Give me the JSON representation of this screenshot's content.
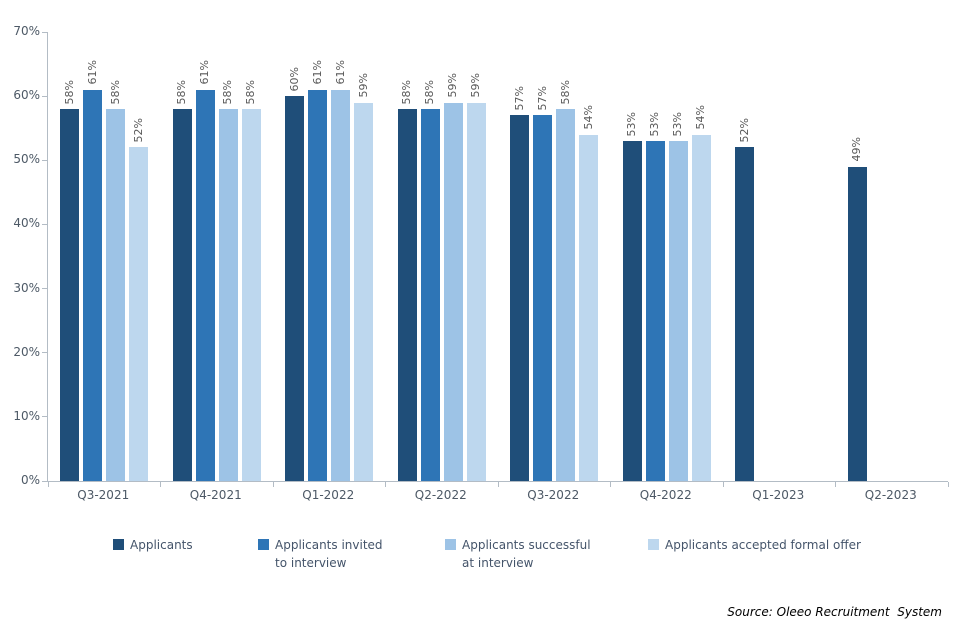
{
  "chart_data": {
    "type": "bar",
    "title": "",
    "categories": [
      "Q3-2021",
      "Q4-2021",
      "Q1-2022",
      "Q2-2022",
      "Q3-2022",
      "Q4-2022",
      "Q1-2023",
      "Q2-2023"
    ],
    "series": [
      {
        "name": "Applicants",
        "legend_lines": [
          "Applicants"
        ],
        "color": "#1F4E79",
        "values": [
          58,
          58,
          60,
          58,
          57,
          53,
          52,
          49
        ]
      },
      {
        "name": "Applicants invited to interview",
        "legend_lines": [
          "Applicants invited",
          "to interview"
        ],
        "color": "#2E75B6",
        "values": [
          61,
          61,
          61,
          58,
          57,
          53,
          null,
          null
        ]
      },
      {
        "name": "Applicants successful at interview",
        "legend_lines": [
          "Applicants successful",
          "at interview"
        ],
        "color": "#9DC3E6",
        "values": [
          58,
          58,
          61,
          59,
          58,
          53,
          null,
          null
        ]
      },
      {
        "name": "Applicants accepted formal offer",
        "legend_lines": [
          "Applicants accepted formal offer"
        ],
        "color": "#BDD7EE",
        "values": [
          52,
          58,
          59,
          59,
          54,
          54,
          null,
          null
        ]
      }
    ],
    "ylim": [
      0,
      70
    ],
    "y_ticks": [
      "0%",
      "10%",
      "20%",
      "30%",
      "40%",
      "50%",
      "60%",
      "70%"
    ],
    "value_suffix": "%",
    "grid": false,
    "legend_position": "bottom",
    "data_labels_rotated": true
  },
  "source_note": "Source: Oleeo Recruitment  System"
}
